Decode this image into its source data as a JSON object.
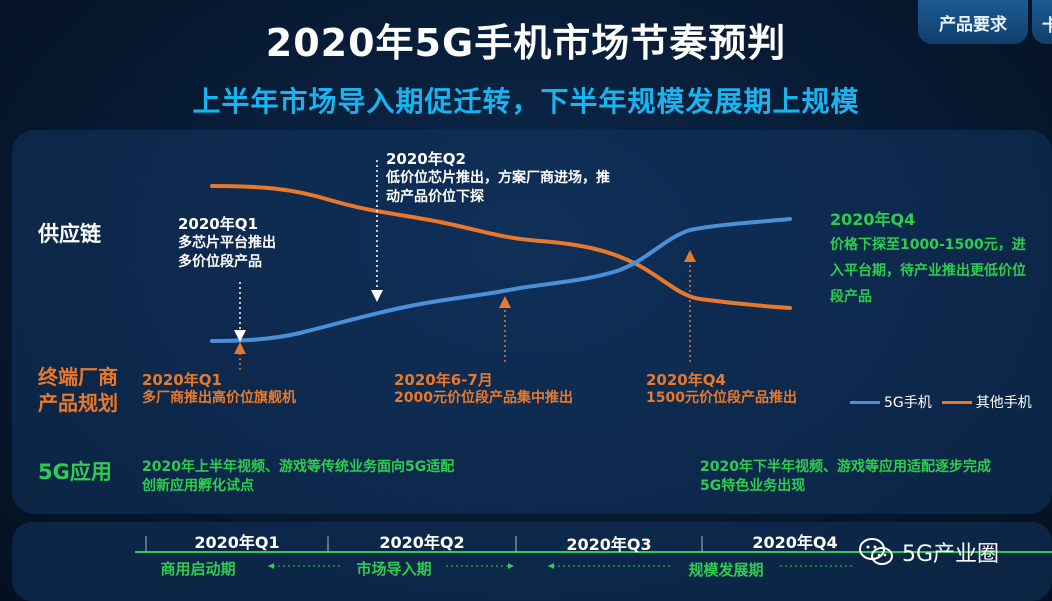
{
  "header": {
    "title": "2020年5G手机市场节奏预判",
    "subtitle": "上半年市场导入期促迁转，下半年规模发展期上规模",
    "tag_button": "产品要求",
    "tag_button_partial": "卡"
  },
  "rows": {
    "supply_chain": "供应链",
    "terminal_line1": "终端厂商",
    "terminal_line2": "产品规划",
    "app_5g": "5G应用"
  },
  "supply_notes": {
    "q1": {
      "head": "2020年Q1",
      "line1": "多芯片平台推出",
      "line2": "多价位段产品"
    },
    "q2": {
      "head": "2020年Q2",
      "line1": "低价位芯片推出，方案厂商进场，推",
      "line2": "动产品价位下探"
    },
    "q4": {
      "head": "2020年Q4",
      "line1": "价格下探至1000-1500元，进",
      "line2": "入平台期，待产业推出更低价位",
      "line3": "段产品"
    }
  },
  "terminal_notes": {
    "q1": {
      "head": "2020年Q1",
      "line1": "多厂商推出高价位旗舰机"
    },
    "m67": {
      "head": "2020年6-7月",
      "line1": "2000元价位段产品集中推出"
    },
    "q4": {
      "head": "2020年Q4",
      "line1": "1500元价位段产品推出"
    }
  },
  "app_notes": {
    "h1_line1": "2020年上半年视频、游戏等传统业务面向5G适配",
    "h1_line2": "创新应用孵化试点",
    "h2_line1": "2020年下半年视频、游戏等应用适配逐步完成",
    "h2_line2": "5G特色业务出现"
  },
  "legend": {
    "phone_5g": "5G手机",
    "phone_other": "其他手机"
  },
  "timeline": {
    "quarters": [
      "2020年Q1",
      "2020年Q2",
      "2020年Q3",
      "2020年Q4"
    ],
    "phases": [
      "商用启动期",
      "市场导入期",
      "规模发展期"
    ]
  },
  "watermark": "5G产业圈",
  "colors": {
    "accent_blue": "#18b4ef",
    "line_5g": "#4a90d9",
    "line_other": "#e8792c",
    "green": "#2ecc4f",
    "orange": "#e8792c"
  },
  "chart_data": {
    "type": "line",
    "x_label_points": [
      "2020年Q1",
      "2020年Q2",
      "2020年Q3",
      "2020年Q4"
    ],
    "series": [
      {
        "name": "5G手机",
        "trend": "rising",
        "values": [
          0.1,
          0.3,
          0.45,
          0.9
        ]
      },
      {
        "name": "其他手机",
        "trend": "falling",
        "values": [
          0.92,
          0.72,
          0.55,
          0.1
        ]
      }
    ]
  }
}
